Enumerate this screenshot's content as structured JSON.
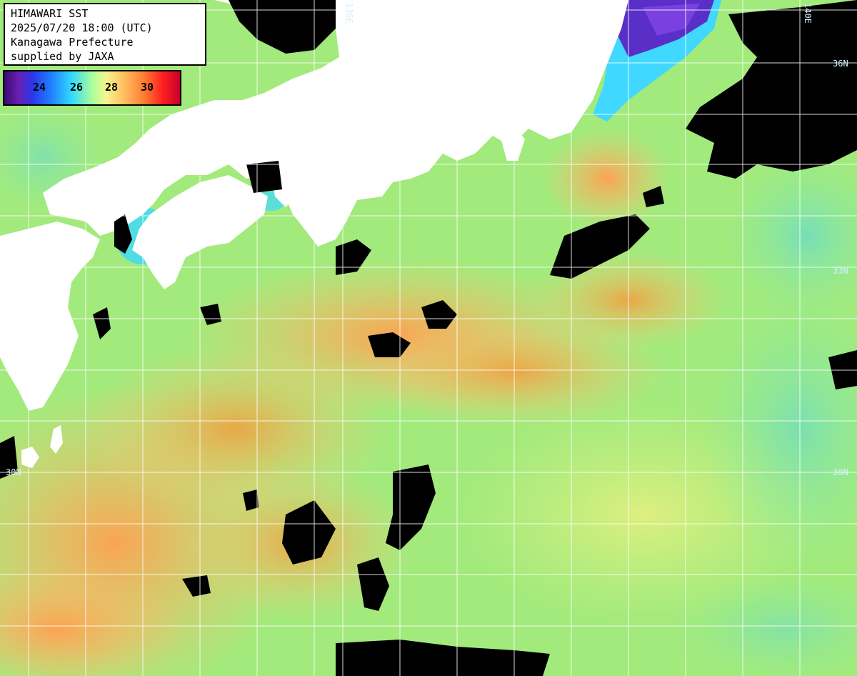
{
  "title": {
    "line1": "HIMAWARI SST",
    "line2": "2025/07/20 18:00 (UTC)",
    "line3": "Kanagawa Prefecture",
    "line4": "supplied by JAXA"
  },
  "colorbar": {
    "ticks": [
      "24",
      "26",
      "28",
      "30"
    ],
    "colors": [
      "#3a0a70",
      "#2a36e8",
      "#30d8ff",
      "#a8ff9a",
      "#f5f590",
      "#ffc060",
      "#ff7a30",
      "#c8002a"
    ]
  },
  "grid_labels": {
    "lon_136": "136E",
    "lon_140": "140E",
    "lat_36": "36N",
    "lat_33": "33N",
    "lat_30_left": "30N",
    "lat_30_right": "30N"
  },
  "colors": {
    "land": "#ffffff",
    "cloud": "#000000",
    "sea_warm": "#ffb060",
    "sea_mid": "#a8f07a",
    "sea_cool": "#40d8f0",
    "sea_cold": "#5a2fc8",
    "grid": "#ffffff"
  }
}
